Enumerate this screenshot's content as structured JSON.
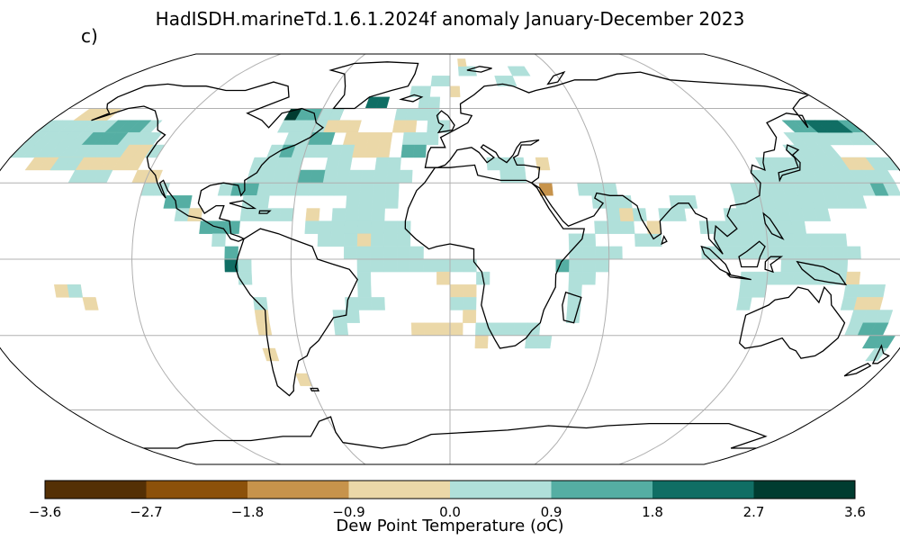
{
  "title": "HadISDH.marineTd.1.6.1.2024f anomaly January-December 2023",
  "panel_label": "c)",
  "colorbar": {
    "label_prefix": "Dew Point Temperature (",
    "label_unit_base": "o",
    "label_suffix": "C)",
    "ticks": [
      "−3.6",
      "−2.7",
      "−1.8",
      "−0.9",
      "0.0",
      "0.9",
      "1.8",
      "2.7",
      "3.6"
    ],
    "bins": [
      {
        "from": -3.6,
        "to": -2.7,
        "color": "#543005"
      },
      {
        "from": -2.7,
        "to": -1.8,
        "color": "#8c510a"
      },
      {
        "from": -1.8,
        "to": -0.9,
        "color": "#c7934b"
      },
      {
        "from": -0.9,
        "to": 0.0,
        "color": "#ebd8a8"
      },
      {
        "from": 0.0,
        "to": 0.9,
        "color": "#b0e0da"
      },
      {
        "from": 0.9,
        "to": 1.8,
        "color": "#55aea3"
      },
      {
        "from": 1.8,
        "to": 2.7,
        "color": "#106e64"
      },
      {
        "from": 2.7,
        "to": 3.6,
        "color": "#003c30"
      }
    ]
  },
  "map": {
    "projection": "Robinson",
    "grid_spacing_deg": 60,
    "grid_color": "#b0b0b0"
  }
}
